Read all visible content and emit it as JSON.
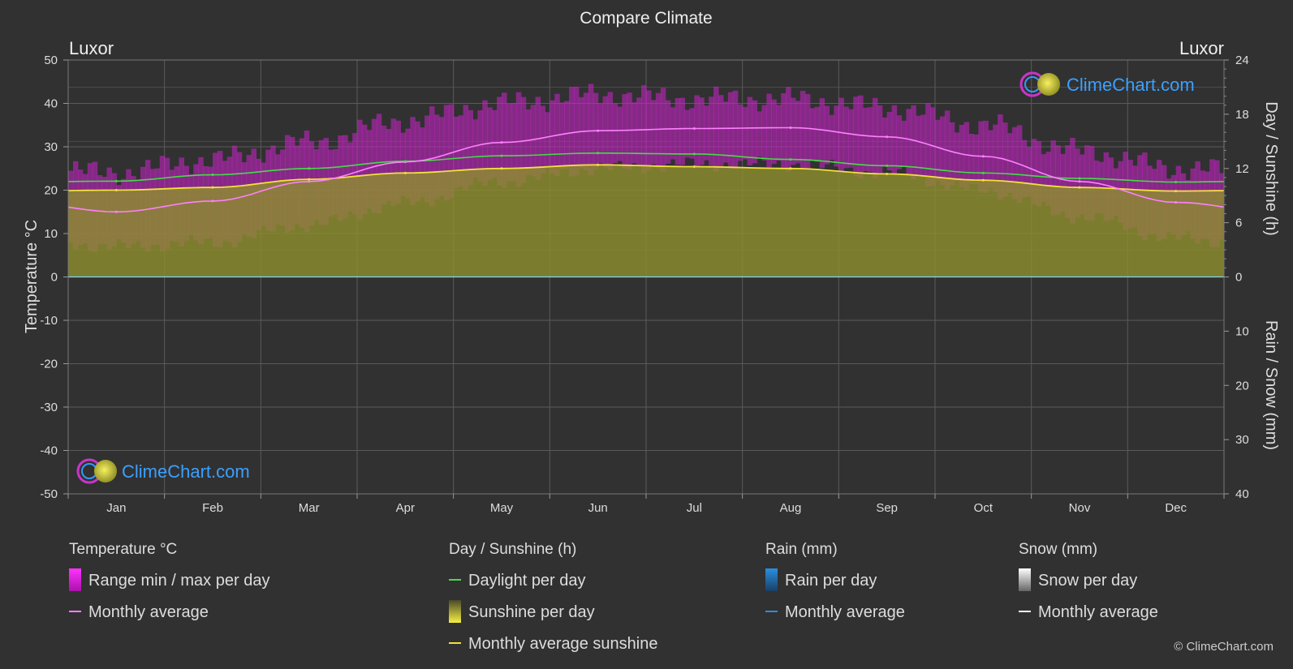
{
  "chart_data": {
    "type": "area",
    "title": "Compare Climate",
    "location_left": "Luxor",
    "location_right": "Luxor",
    "left_axis": {
      "label": "Temperature °C",
      "min": -50,
      "max": 50,
      "ticks": [
        50,
        40,
        30,
        20,
        10,
        0,
        -10,
        -20,
        -30,
        -40,
        -50
      ]
    },
    "right_axis_top": {
      "label": "Day / Sunshine (h)",
      "min": 0,
      "max": 24,
      "ticks": [
        24,
        18,
        12,
        6,
        0
      ]
    },
    "right_axis_bottom": {
      "label": "Rain / Snow (mm)",
      "min": 0,
      "max": 40,
      "ticks": [
        10,
        20,
        30,
        40
      ]
    },
    "months": [
      "Jan",
      "Feb",
      "Mar",
      "Apr",
      "May",
      "Jun",
      "Jul",
      "Aug",
      "Sep",
      "Oct",
      "Nov",
      "Dec"
    ],
    "grid": true,
    "series": [
      {
        "name": "Range min / max per day",
        "key": "temp_range",
        "min": [
          7,
          8,
          12,
          17,
          22,
          25,
          26,
          26,
          24,
          20,
          14,
          9
        ],
        "max": [
          24,
          27,
          31,
          36,
          40,
          42,
          41,
          41,
          39,
          35,
          29,
          25
        ]
      },
      {
        "name": "Monthly average",
        "key": "temp_avg",
        "values": [
          15.0,
          17.5,
          22.0,
          26.5,
          31.0,
          33.7,
          34.2,
          34.4,
          32.3,
          27.8,
          22.0,
          17.2
        ]
      },
      {
        "name": "Daylight per day",
        "key": "daylight",
        "values": [
          10.6,
          11.3,
          12.0,
          12.8,
          13.4,
          13.7,
          13.6,
          13.0,
          12.3,
          11.5,
          10.9,
          10.5
        ]
      },
      {
        "name": "Sunshine per day",
        "key": "sunshine",
        "values": [
          9.6,
          9.9,
          10.8,
          11.5,
          12.0,
          12.4,
          12.2,
          12.0,
          11.4,
          10.7,
          9.9,
          9.5
        ]
      },
      {
        "name": "Monthly average sunshine",
        "key": "sunshine_avg",
        "values": [
          9.6,
          9.9,
          10.8,
          11.5,
          12.0,
          12.4,
          12.2,
          12.0,
          11.4,
          10.7,
          9.9,
          9.5
        ]
      },
      {
        "name": "Rain per day",
        "key": "rain",
        "values": [
          0,
          0,
          0,
          0,
          0,
          0,
          0,
          0,
          0,
          0,
          0,
          0
        ]
      },
      {
        "name": "Snow per day",
        "key": "snow",
        "values": [
          0,
          0,
          0,
          0,
          0,
          0,
          0,
          0,
          0,
          0,
          0,
          0
        ]
      }
    ],
    "legend": {
      "placement": "bottom",
      "groups": [
        {
          "title": "Temperature °C",
          "items": [
            {
              "label": "Range min / max per day",
              "swatch": "range"
            },
            {
              "label": "Monthly average",
              "swatch": "line-pink"
            }
          ]
        },
        {
          "title": "Day / Sunshine (h)",
          "items": [
            {
              "label": "Daylight per day",
              "swatch": "line-green"
            },
            {
              "label": "Sunshine per day",
              "swatch": "sun"
            },
            {
              "label": "Monthly average sunshine",
              "swatch": "line-yellow"
            }
          ]
        },
        {
          "title": "Rain (mm)",
          "items": [
            {
              "label": "Rain per day",
              "swatch": "rain"
            },
            {
              "label": "Monthly average",
              "swatch": "line-blue"
            }
          ]
        },
        {
          "title": "Snow (mm)",
          "items": [
            {
              "label": "Snow per day",
              "swatch": "snow"
            },
            {
              "label": "Monthly average",
              "swatch": "line-white"
            }
          ]
        }
      ]
    },
    "colors": {
      "background": "#313131",
      "grid": "#5a5a5a",
      "temp_range": "#cc22cc",
      "temp_avg": "#ff80ff",
      "daylight": "#44dd44",
      "sunshine": "#8e8e2e",
      "sunshine_avg": "#f0e040",
      "rain": "#2a8fe0",
      "snow": "#ffffff",
      "brand": "#3aa0ff"
    }
  },
  "branding": {
    "logo_text": "ClimeChart.com",
    "copyright": "© ClimeChart.com"
  }
}
